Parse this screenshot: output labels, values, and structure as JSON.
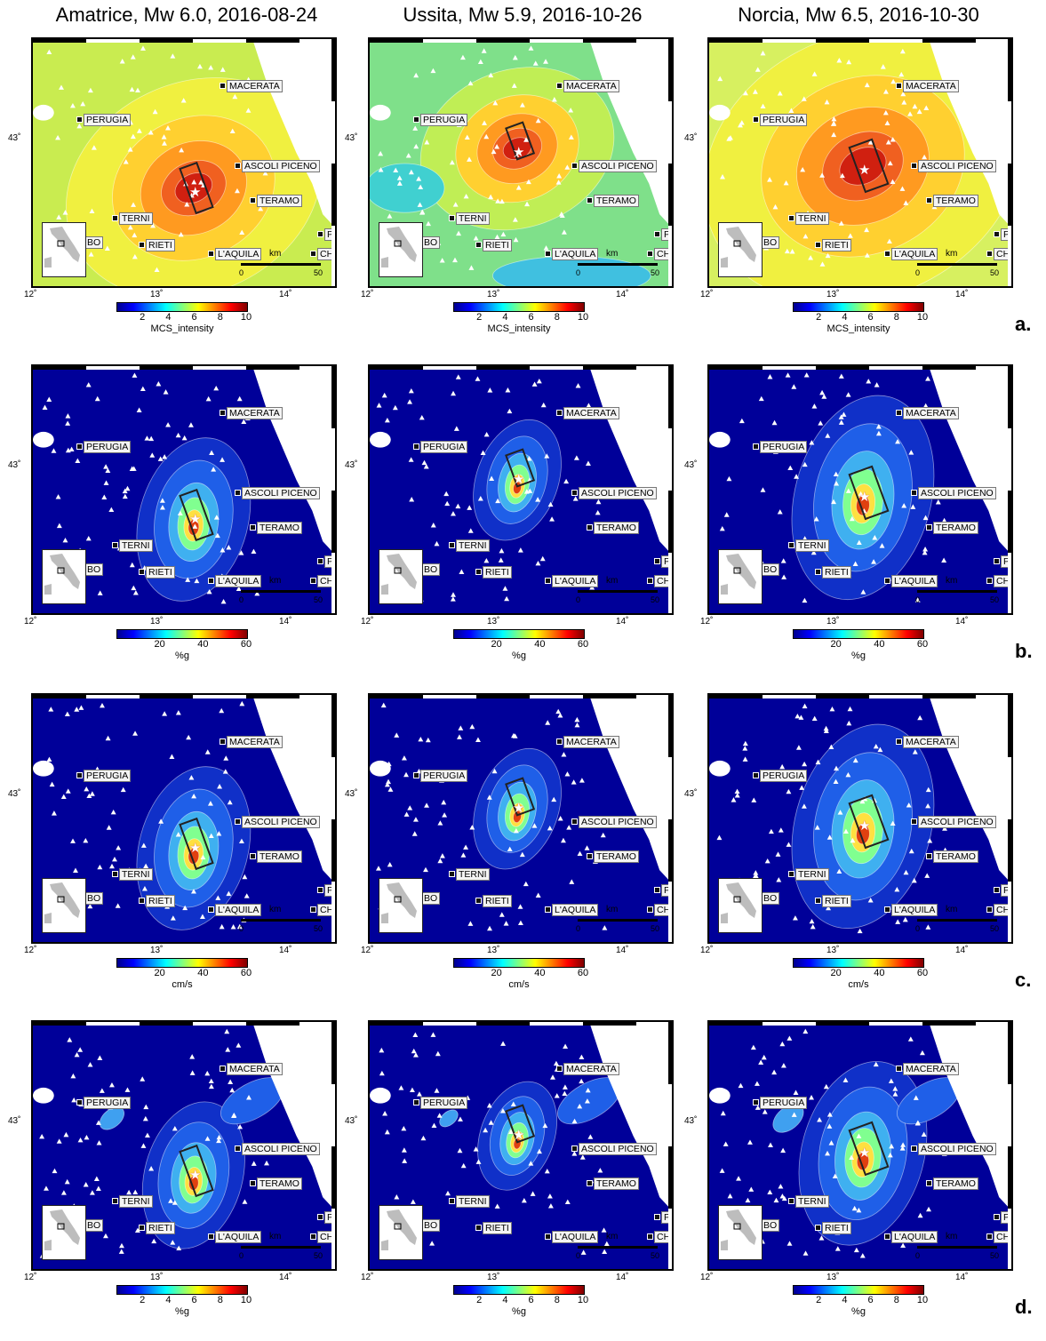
{
  "columns": [
    {
      "title": "Amatrice, Mw 6.0, 2016-08-24"
    },
    {
      "title": "Ussita, Mw 5.9, 2016-10-26"
    },
    {
      "title": "Norcia, Mw 6.5, 2016-10-30"
    }
  ],
  "rows": [
    {
      "label": "a.",
      "unit": "MCS_intensity",
      "ticks": [
        "2",
        "4",
        "6",
        "8",
        "10"
      ]
    },
    {
      "label": "b.",
      "unit": "%g",
      "ticks": [
        "20",
        "40",
        "60"
      ]
    },
    {
      "label": "c.",
      "unit": "cm/s",
      "ticks": [
        "20",
        "40",
        "60"
      ]
    },
    {
      "label": "d.",
      "unit": "%g",
      "ticks": [
        "2",
        "4",
        "6",
        "8",
        "10"
      ]
    }
  ],
  "cities": [
    {
      "name": "MACERATA"
    },
    {
      "name": "PERUGIA"
    },
    {
      "name": "ASCOLI PICENO"
    },
    {
      "name": "TERAMO"
    },
    {
      "name": "TERNI"
    },
    {
      "name": "RIETI"
    },
    {
      "name": "L'AQUILA"
    },
    {
      "name": "BO"
    },
    {
      "name": "P"
    },
    {
      "name": "CH"
    }
  ],
  "axes": {
    "lon_ticks": [
      "12˚",
      "13˚",
      "14˚"
    ],
    "lat_tick": "43˚"
  },
  "scale": {
    "unit": "km",
    "min": "0",
    "max": "50"
  },
  "colors": {
    "jet": [
      "#00008f",
      "#0000ff",
      "#0080ff",
      "#00ffff",
      "#80ff80",
      "#ffff00",
      "#ff8000",
      "#ff0000",
      "#800000"
    ],
    "intensity_bg": "#b8e85a",
    "pga_bg": "#000099",
    "sea": "#ffffff"
  }
}
